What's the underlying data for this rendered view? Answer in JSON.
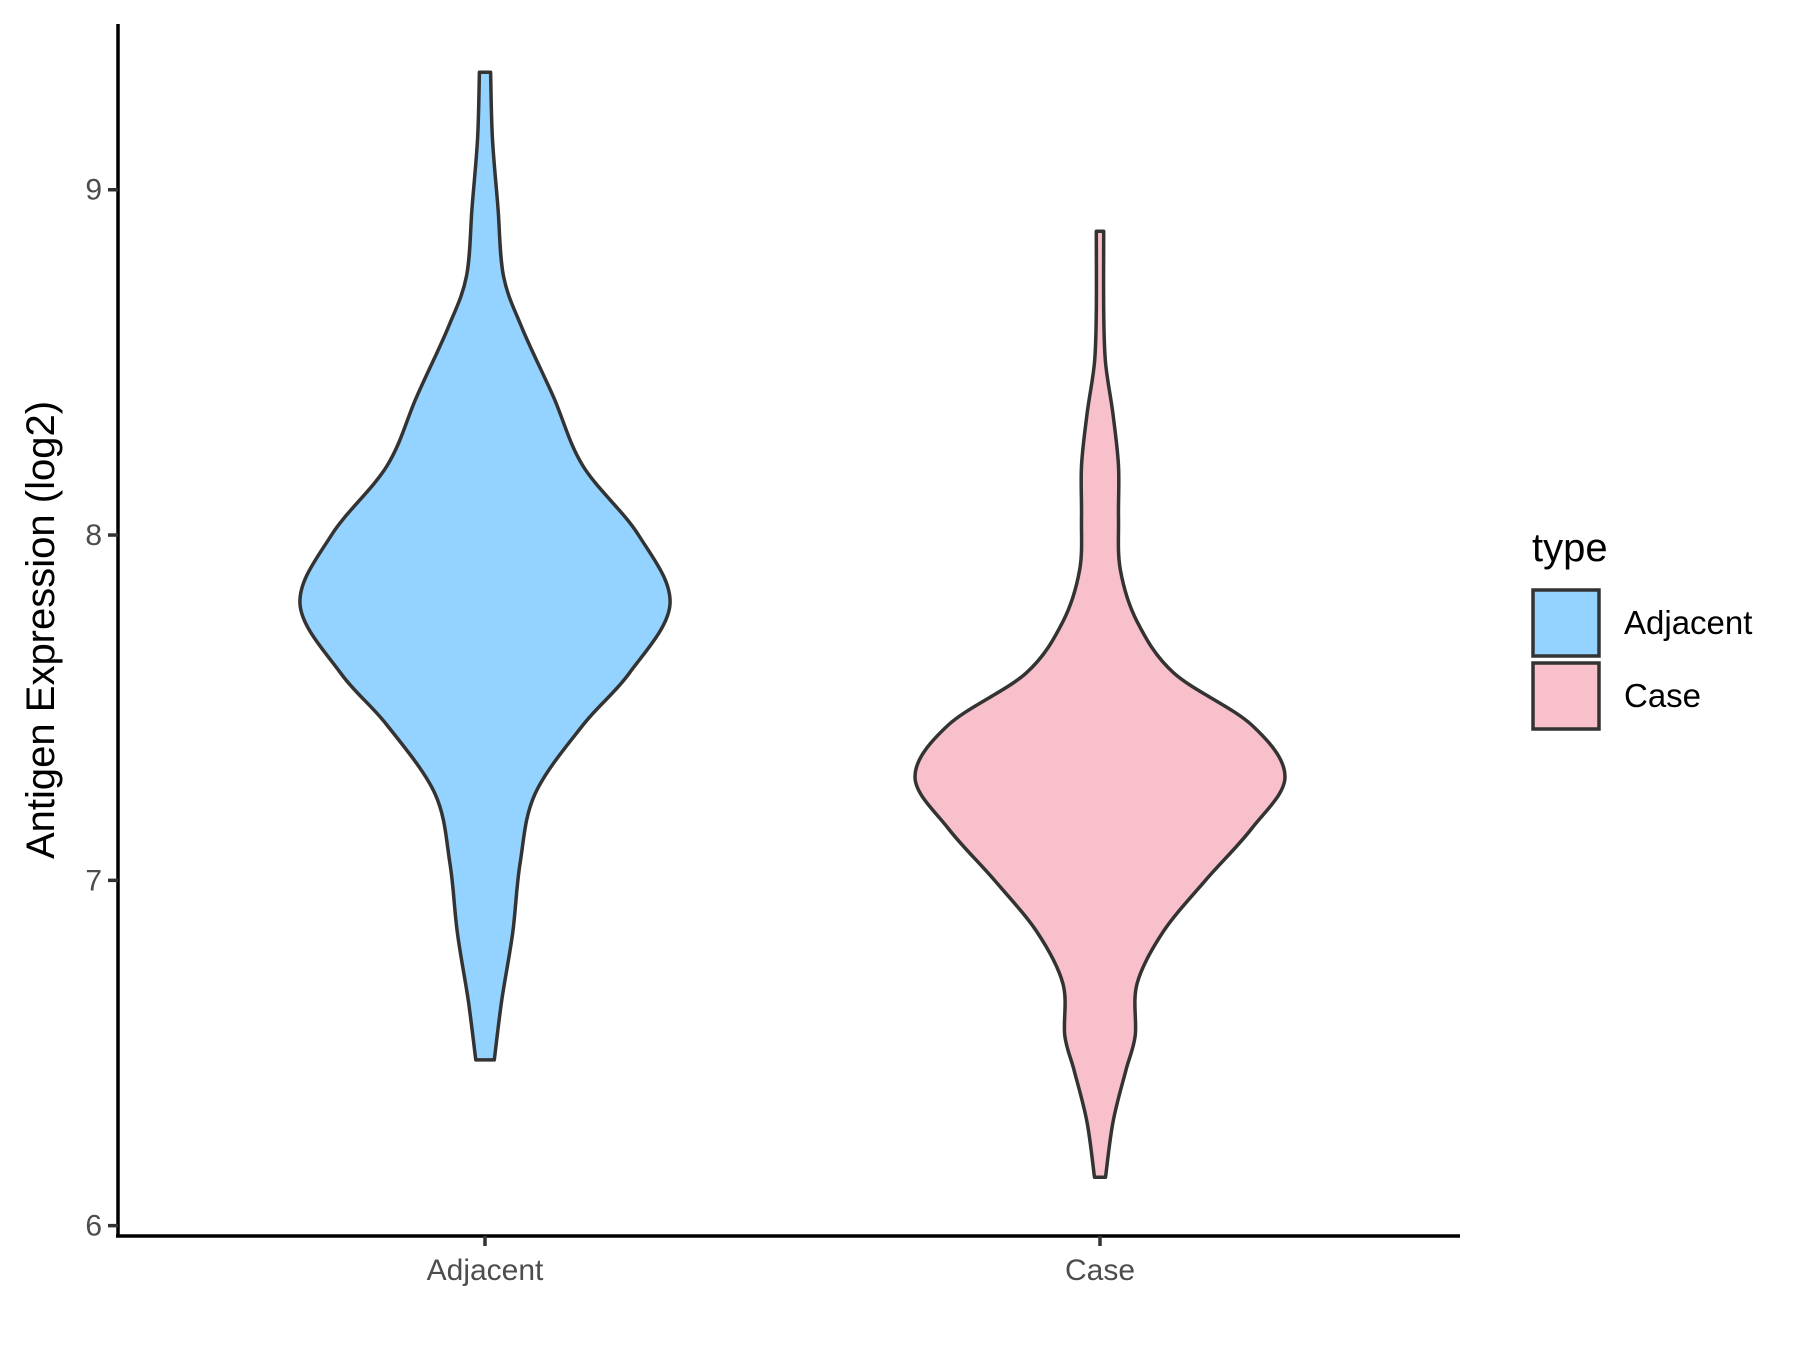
{
  "chart_data": {
    "type": "violin",
    "title": "",
    "xlabel": "",
    "ylabel": "Antigen Expression (log2)",
    "ylim": [
      5.97,
      9.48
    ],
    "y_ticks": [
      6,
      7,
      8,
      9
    ],
    "categories": [
      "Adjacent",
      "Case"
    ],
    "legend": {
      "title": "type",
      "placement": "right",
      "entries": [
        "Adjacent",
        "Case"
      ]
    },
    "grid": false,
    "series": [
      {
        "name": "Adjacent",
        "color": "#94D3FF",
        "min": 6.48,
        "max": 9.34,
        "density": [
          [
            6.48,
            0.05
          ],
          [
            6.65,
            0.09
          ],
          [
            6.85,
            0.15
          ],
          [
            7.05,
            0.19
          ],
          [
            7.25,
            0.27
          ],
          [
            7.45,
            0.53
          ],
          [
            7.6,
            0.78
          ],
          [
            7.8,
            1.0
          ],
          [
            8.0,
            0.83
          ],
          [
            8.2,
            0.53
          ],
          [
            8.4,
            0.37
          ],
          [
            8.6,
            0.2
          ],
          [
            8.75,
            0.1
          ],
          [
            8.95,
            0.07
          ],
          [
            9.15,
            0.04
          ],
          [
            9.34,
            0.03
          ]
        ]
      },
      {
        "name": "Case",
        "color": "#F8C0CB",
        "min": 6.14,
        "max": 8.88,
        "density": [
          [
            6.14,
            0.03
          ],
          [
            6.3,
            0.07
          ],
          [
            6.45,
            0.14
          ],
          [
            6.55,
            0.19
          ],
          [
            6.7,
            0.2
          ],
          [
            6.85,
            0.34
          ],
          [
            7.0,
            0.57
          ],
          [
            7.15,
            0.82
          ],
          [
            7.3,
            1.0
          ],
          [
            7.45,
            0.82
          ],
          [
            7.6,
            0.4
          ],
          [
            7.75,
            0.2
          ],
          [
            7.9,
            0.11
          ],
          [
            8.05,
            0.1
          ],
          [
            8.2,
            0.1
          ],
          [
            8.35,
            0.07
          ],
          [
            8.5,
            0.03
          ],
          [
            8.65,
            0.02
          ],
          [
            8.88,
            0.02
          ]
        ]
      }
    ]
  }
}
